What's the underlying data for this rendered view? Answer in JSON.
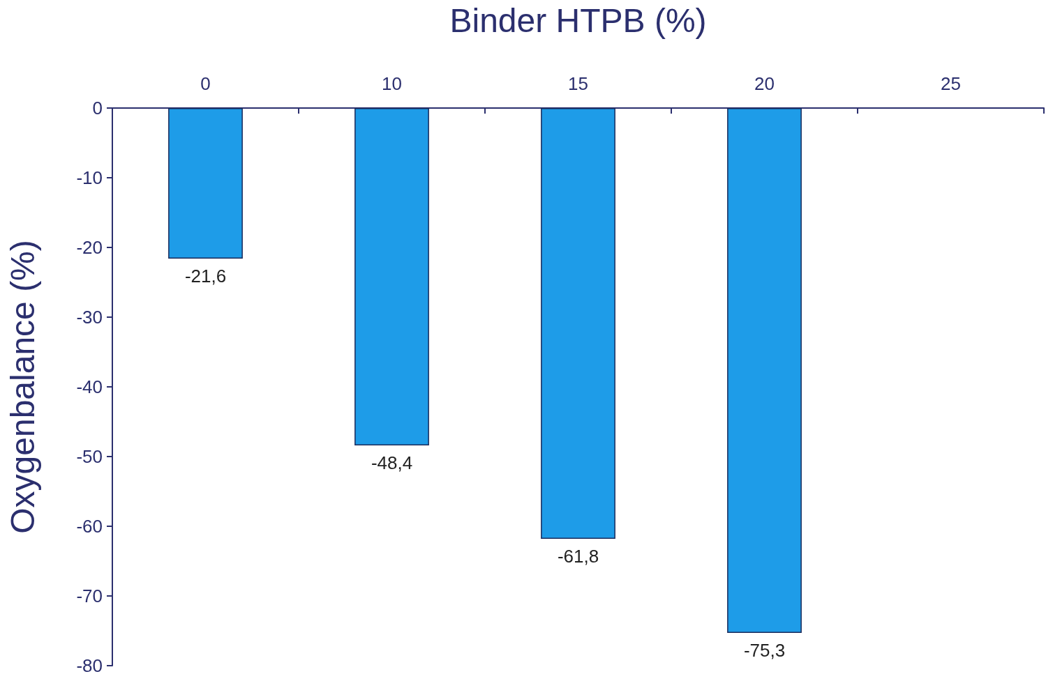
{
  "chart_data": {
    "type": "bar",
    "xlabel": "Binder HTPB (%)",
    "ylabel": "Oxygenbalance (%)",
    "categories": [
      "0",
      "10",
      "15",
      "20",
      "25"
    ],
    "values": [
      -21.6,
      -48.4,
      -61.8,
      -75.3,
      null
    ],
    "value_labels": [
      "-21,6",
      "-48,4",
      "-61,8",
      "-75,3",
      null
    ],
    "color": "#1e9ce8",
    "ylim": [
      -80,
      0
    ],
    "yticks": [
      -80,
      -70,
      -60,
      -50,
      -40,
      -30,
      -20,
      -10,
      0
    ]
  }
}
